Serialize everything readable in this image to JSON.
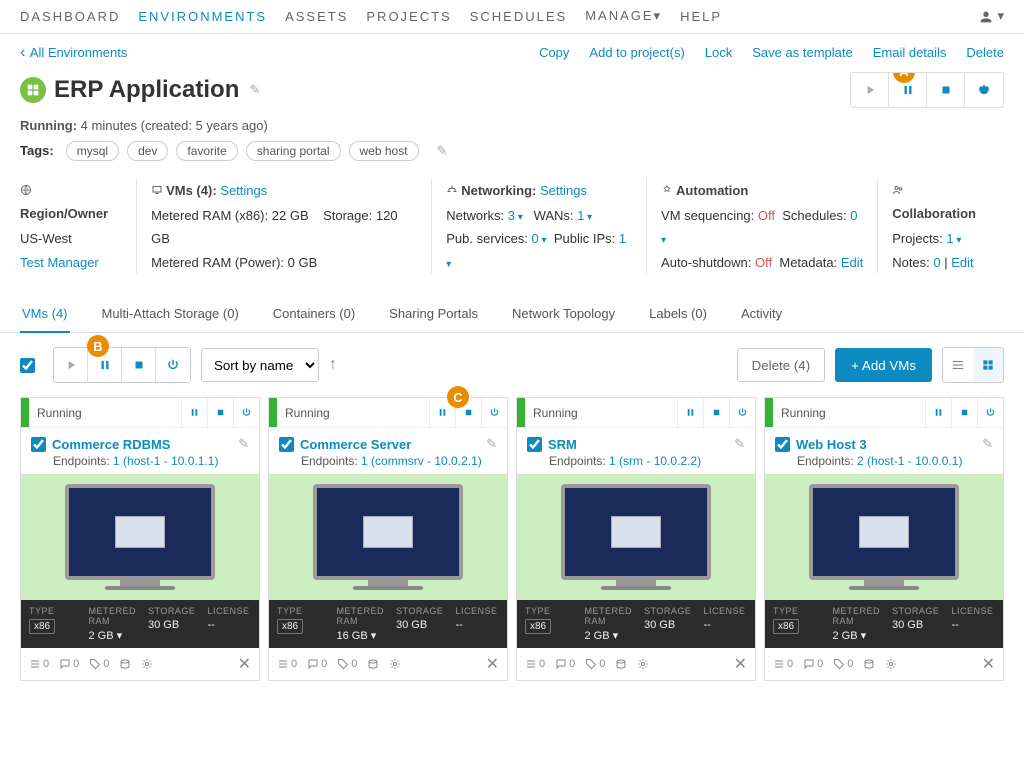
{
  "nav": {
    "dashboard": "DASHBOARD",
    "environments": "ENVIRONMENTS",
    "assets": "ASSETS",
    "projects": "PROJECTS",
    "schedules": "SCHEDULES",
    "manage": "MANAGE",
    "help": "HELP"
  },
  "subnav": {
    "back": "All Environments",
    "copy": "Copy",
    "add_to_projects": "Add to project(s)",
    "lock": "Lock",
    "save_as_template": "Save as template",
    "email_details": "Email details",
    "delete": "Delete"
  },
  "badges": {
    "a": "A",
    "b": "B",
    "c": "C"
  },
  "title": "ERP Application",
  "status_label": "Running:",
  "status_value": "4 minutes (created: 5 years ago)",
  "tags_label": "Tags:",
  "tags": [
    "mysql",
    "dev",
    "favorite",
    "sharing portal",
    "web host"
  ],
  "meta": {
    "region": {
      "head": "Region/Owner",
      "region": "US-West",
      "owner": "Test Manager"
    },
    "vms": {
      "head": "VMs (4):",
      "settings": "Settings",
      "ram_x86_label": "Metered RAM (x86):",
      "ram_x86": "22 GB",
      "storage_label": "Storage:",
      "storage": "120 GB",
      "ram_power_label": "Metered RAM (Power):",
      "ram_power": "0 GB"
    },
    "net": {
      "head": "Networking:",
      "settings": "Settings",
      "networks_label": "Networks:",
      "networks": "3",
      "wans_label": "WANs:",
      "wans": "1",
      "pubsvc_label": "Pub. services:",
      "pubsvc": "0",
      "pubips_label": "Public IPs:",
      "pubips": "1"
    },
    "auto": {
      "head": "Automation",
      "seq_label": "VM sequencing:",
      "seq": "Off",
      "sched_label": "Schedules:",
      "sched": "0",
      "shut_label": "Auto-shutdown:",
      "shut": "Off",
      "meta_label": "Metadata:",
      "meta": "Edit"
    },
    "collab": {
      "head": "Collaboration",
      "proj_label": "Projects:",
      "proj": "1",
      "notes_label": "Notes:",
      "notes": "0",
      "edit": "Edit"
    }
  },
  "tabs": {
    "vms": "VMs (4)",
    "mas": "Multi-Attach Storage (0)",
    "containers": "Containers (0)",
    "sharing": "Sharing Portals",
    "topology": "Network Topology",
    "labels": "Labels (0)",
    "activity": "Activity"
  },
  "toolbar": {
    "sort": "Sort by name",
    "delete": "Delete (4)",
    "add": "+ Add VMs"
  },
  "cards": [
    {
      "status": "Running",
      "name": "Commerce RDBMS",
      "ep_count": "1",
      "ep": "(host-1 - 10.0.1.1)",
      "type": "x86",
      "ram": "2 GB",
      "storage": "30 GB",
      "license": "--",
      "net": "0",
      "disk": "0",
      "cd": "0"
    },
    {
      "status": "Running",
      "name": "Commerce Server",
      "ep_count": "1",
      "ep": "(commsrv - 10.0.2.1)",
      "type": "x86",
      "ram": "16 GB",
      "storage": "30 GB",
      "license": "--",
      "net": "0",
      "disk": "0",
      "cd": "0"
    },
    {
      "status": "Running",
      "name": "SRM",
      "ep_count": "1",
      "ep": "(srm - 10.0.2.2)",
      "type": "x86",
      "ram": "2 GB",
      "storage": "30 GB",
      "license": "--",
      "net": "0",
      "disk": "0",
      "cd": "0"
    },
    {
      "status": "Running",
      "name": "Web Host 3",
      "ep_count": "2",
      "ep": "(host-1 - 10.0.0.1)",
      "type": "x86",
      "ram": "2 GB",
      "storage": "30 GB",
      "license": "--",
      "net": "0",
      "disk": "0",
      "cd": "0"
    }
  ],
  "spec_heads": {
    "type": "TYPE",
    "ram": "METERED RAM",
    "storage": "STORAGE",
    "license": "LICENSE"
  },
  "ep_label": "Endpoints:"
}
